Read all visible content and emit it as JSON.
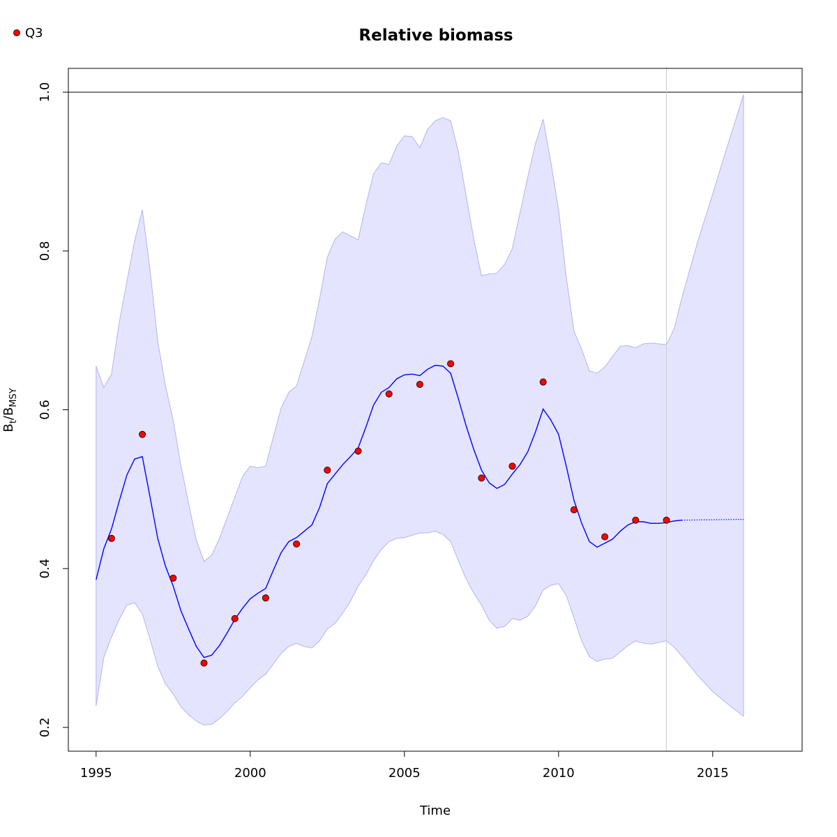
{
  "chart_data": {
    "type": "line",
    "title": "Relative biomass",
    "xlabel": "Time",
    "ylabel": {
      "base": "B",
      "sub1": "t",
      "sep": "/",
      "base2": "B",
      "sub2": "MSY"
    },
    "xlim": [
      1994.1,
      2017.9
    ],
    "ylim": [
      0.17,
      1.03
    ],
    "x_ticks": [
      1995,
      2000,
      2005,
      2010,
      2015
    ],
    "x_tick_labels": [
      "1995",
      "2000",
      "2005",
      "2010",
      "2015"
    ],
    "y_ticks": [
      0.2,
      0.4,
      0.6,
      0.8,
      1.0
    ],
    "y_tick_labels": [
      "0.2",
      "0.4",
      "0.6",
      "0.8",
      "1.0"
    ],
    "reference_line_y": 1.0,
    "vertical_line_x": 2013.5,
    "legend": {
      "placement": "top-left",
      "entries": [
        {
          "label": "Q3",
          "color": "#ff0000"
        }
      ]
    },
    "colors": {
      "line": "#0000ff",
      "band": "#e4e4ff",
      "band_edge": "#b3b3f0",
      "points": "#ff0000",
      "vline": "#cccccc"
    },
    "series": [
      {
        "kind": "estimate",
        "x": [
          1995.0,
          1995.25,
          1995.5,
          1995.75,
          1996.0,
          1996.25,
          1996.5,
          1996.75,
          1997.0,
          1997.25,
          1997.5,
          1997.75,
          1998.0,
          1998.25,
          1998.5,
          1998.75,
          1999.0,
          1999.25,
          1999.5,
          1999.75,
          2000.0,
          2000.25,
          2000.5,
          2000.75,
          2001.0,
          2001.25,
          2001.5,
          2001.75,
          2002.0,
          2002.25,
          2002.5,
          2002.75,
          2003.0,
          2003.25,
          2003.5,
          2003.75,
          2004.0,
          2004.25,
          2004.5,
          2004.75,
          2005.0,
          2005.25,
          2005.5,
          2005.75,
          2006.0,
          2006.25,
          2006.5,
          2006.75,
          2007.0,
          2007.25,
          2007.5,
          2007.75,
          2008.0,
          2008.25,
          2008.5,
          2008.75,
          2009.0,
          2009.25,
          2009.5,
          2009.75,
          2010.0,
          2010.25,
          2010.5,
          2010.75,
          2011.0,
          2011.25,
          2011.5,
          2011.75,
          2012.0,
          2012.25,
          2012.5,
          2012.75,
          2013.0,
          2013.25,
          2013.5,
          2013.75,
          2014.0
        ],
        "y": [
          0.386,
          0.425,
          0.45,
          0.485,
          0.518,
          0.538,
          0.541,
          0.49,
          0.438,
          0.403,
          0.378,
          0.347,
          0.324,
          0.302,
          0.288,
          0.291,
          0.303,
          0.319,
          0.336,
          0.35,
          0.362,
          0.369,
          0.375,
          0.398,
          0.42,
          0.434,
          0.439,
          0.447,
          0.455,
          0.477,
          0.507,
          0.519,
          0.531,
          0.541,
          0.552,
          0.578,
          0.606,
          0.622,
          0.628,
          0.639,
          0.644,
          0.645,
          0.643,
          0.651,
          0.656,
          0.655,
          0.646,
          0.614,
          0.58,
          0.55,
          0.524,
          0.508,
          0.501,
          0.506,
          0.519,
          0.531,
          0.547,
          0.572,
          0.601,
          0.587,
          0.569,
          0.529,
          0.486,
          0.457,
          0.434,
          0.427,
          0.432,
          0.437,
          0.447,
          0.455,
          0.459,
          0.459,
          0.457,
          0.457,
          0.458,
          0.46,
          0.461
        ]
      },
      {
        "kind": "projection",
        "x": [
          2014.0,
          2016.0
        ],
        "y": [
          0.461,
          0.462
        ]
      },
      {
        "kind": "confidence-band",
        "x": [
          1995.0,
          1995.25,
          1995.5,
          1995.75,
          1996.0,
          1996.25,
          1996.5,
          1996.75,
          1997.0,
          1997.25,
          1997.5,
          1997.75,
          1998.0,
          1998.25,
          1998.5,
          1998.75,
          1999.0,
          1999.25,
          1999.5,
          1999.75,
          2000.0,
          2000.25,
          2000.5,
          2000.75,
          2001.0,
          2001.25,
          2001.5,
          2001.75,
          2002.0,
          2002.25,
          2002.5,
          2002.75,
          2003.0,
          2003.25,
          2003.5,
          2003.75,
          2004.0,
          2004.25,
          2004.5,
          2004.75,
          2005.0,
          2005.25,
          2005.5,
          2005.75,
          2006.0,
          2006.25,
          2006.5,
          2006.75,
          2007.0,
          2007.25,
          2007.5,
          2007.75,
          2008.0,
          2008.25,
          2008.5,
          2008.75,
          2009.0,
          2009.25,
          2009.5,
          2009.75,
          2010.0,
          2010.25,
          2010.5,
          2010.75,
          2011.0,
          2011.25,
          2011.5,
          2011.75,
          2012.0,
          2012.25,
          2012.5,
          2012.75,
          2013.0,
          2013.25,
          2013.5,
          2013.75,
          2014.0,
          2014.5,
          2015.0,
          2015.5,
          2016.0
        ],
        "upper": [
          0.655,
          0.628,
          0.645,
          0.71,
          0.762,
          0.813,
          0.852,
          0.776,
          0.686,
          0.63,
          0.587,
          0.53,
          0.482,
          0.436,
          0.409,
          0.417,
          0.438,
          0.464,
          0.49,
          0.516,
          0.529,
          0.527,
          0.529,
          0.566,
          0.602,
          0.622,
          0.63,
          0.661,
          0.692,
          0.74,
          0.792,
          0.815,
          0.824,
          0.819,
          0.814,
          0.858,
          0.897,
          0.911,
          0.909,
          0.932,
          0.945,
          0.944,
          0.93,
          0.953,
          0.964,
          0.968,
          0.964,
          0.925,
          0.87,
          0.815,
          0.769,
          0.771,
          0.772,
          0.783,
          0.803,
          0.848,
          0.893,
          0.935,
          0.966,
          0.912,
          0.852,
          0.767,
          0.699,
          0.676,
          0.649,
          0.646,
          0.654,
          0.667,
          0.68,
          0.681,
          0.678,
          0.683,
          0.684,
          0.683,
          0.682,
          0.702,
          0.741,
          0.81,
          0.872,
          0.935,
          0.997
        ],
        "lower": [
          0.227,
          0.288,
          0.314,
          0.336,
          0.354,
          0.357,
          0.343,
          0.311,
          0.277,
          0.255,
          0.242,
          0.226,
          0.216,
          0.208,
          0.203,
          0.204,
          0.211,
          0.22,
          0.231,
          0.239,
          0.25,
          0.26,
          0.267,
          0.28,
          0.293,
          0.302,
          0.306,
          0.302,
          0.3,
          0.309,
          0.324,
          0.331,
          0.344,
          0.359,
          0.378,
          0.392,
          0.41,
          0.424,
          0.434,
          0.438,
          0.439,
          0.442,
          0.445,
          0.445,
          0.447,
          0.443,
          0.434,
          0.41,
          0.387,
          0.369,
          0.354,
          0.335,
          0.325,
          0.327,
          0.337,
          0.335,
          0.34,
          0.353,
          0.373,
          0.379,
          0.381,
          0.366,
          0.338,
          0.309,
          0.289,
          0.283,
          0.286,
          0.287,
          0.295,
          0.303,
          0.309,
          0.306,
          0.305,
          0.307,
          0.309,
          0.301,
          0.29,
          0.266,
          0.245,
          0.229,
          0.214
        ]
      },
      {
        "kind": "observations",
        "name": "Q3",
        "x": [
          1995.5,
          1996.5,
          1997.5,
          1998.5,
          1999.5,
          2000.5,
          2001.5,
          2002.5,
          2003.5,
          2004.5,
          2005.5,
          2006.5,
          2007.5,
          2008.5,
          2009.5,
          2010.5,
          2011.5,
          2012.5,
          2013.5
        ],
        "y": [
          0.438,
          0.569,
          0.388,
          0.281,
          0.337,
          0.363,
          0.431,
          0.524,
          0.548,
          0.62,
          0.632,
          0.658,
          0.514,
          0.529,
          0.635,
          0.474,
          0.44,
          0.461,
          0.461
        ]
      }
    ]
  }
}
